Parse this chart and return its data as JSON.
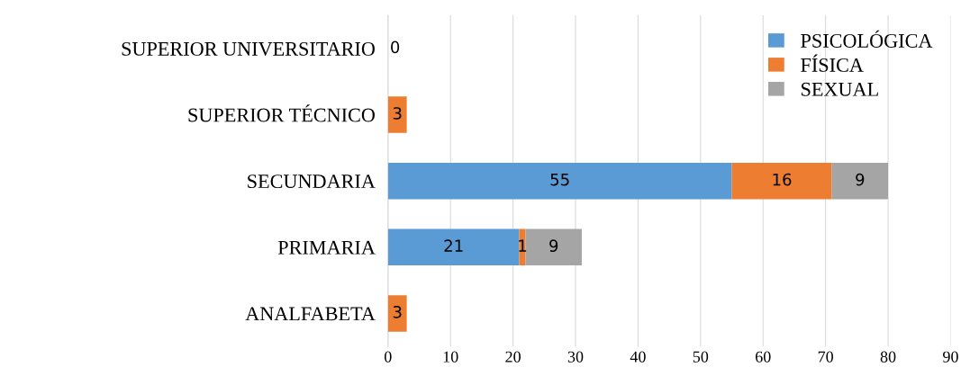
{
  "chart_data": {
    "type": "bar",
    "orientation": "horizontal",
    "stacked": true,
    "categories": [
      "SUPERIOR UNIVERSITARIO",
      "SUPERIOR TÉCNICO",
      "SECUNDARIA",
      "PRIMARIA",
      "ANALFABETA"
    ],
    "series": [
      {
        "name": "PSICOLÓGICA",
        "color": "#5b9bd5",
        "values": [
          0,
          null,
          55,
          21,
          null
        ]
      },
      {
        "name": "FÍSICA",
        "color": "#ed7d31",
        "values": [
          null,
          3,
          16,
          1,
          3
        ]
      },
      {
        "name": "SEXUAL",
        "color": "#a5a5a5",
        "values": [
          null,
          null,
          9,
          9,
          null
        ]
      }
    ],
    "xlim": [
      0,
      90
    ],
    "xticks": [
      0,
      10,
      20,
      30,
      40,
      50,
      60,
      70,
      80,
      90
    ],
    "grid": "x",
    "legend": "top right",
    "data_labels": true
  }
}
